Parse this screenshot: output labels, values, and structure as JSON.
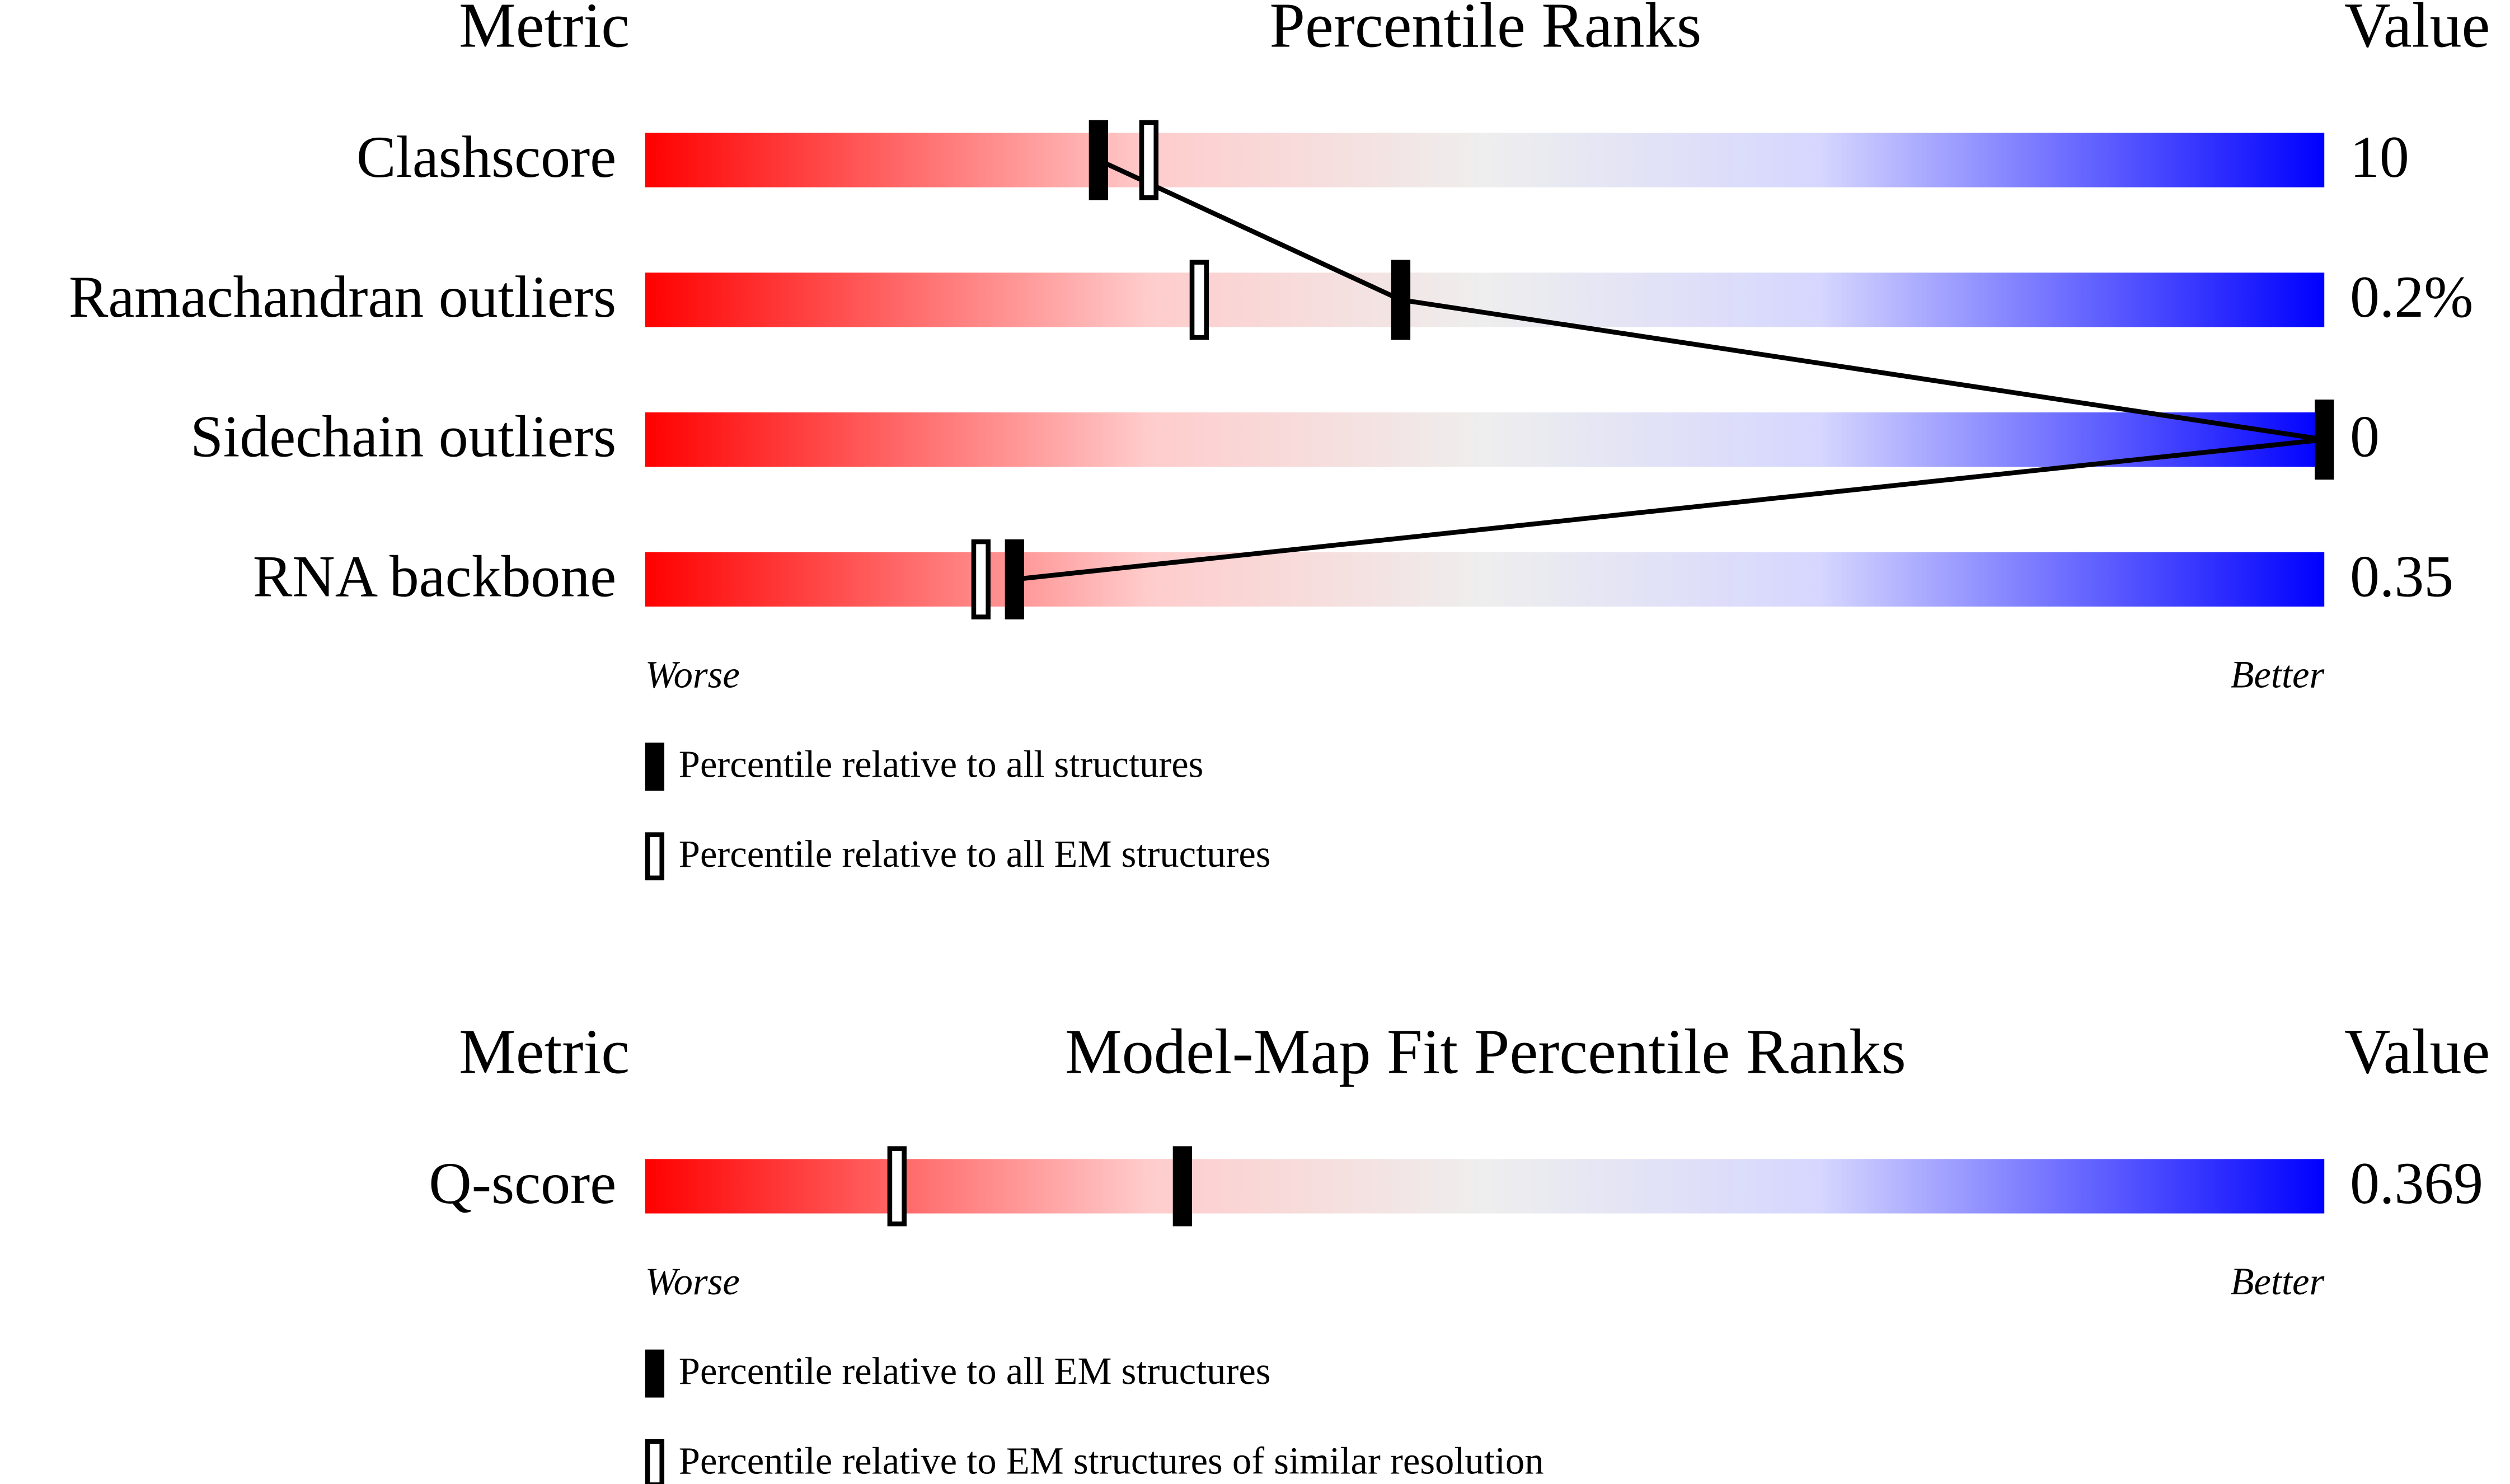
{
  "chart_data": [
    {
      "type": "percentile",
      "metric_header": "Metric",
      "title": "Percentile Ranks",
      "value_header": "Value",
      "categories": [
        "Clashscore",
        "Ramachandran outliers",
        "Sidechain outliers",
        "RNA backbone"
      ],
      "value_texts": [
        "10",
        "0.2%",
        "0",
        "0.35"
      ],
      "series": [
        {
          "name": "Percentile relative to all structures",
          "style": "filled",
          "color": "#000000",
          "values": [
            27,
            45,
            100,
            22
          ]
        },
        {
          "name": "Percentile relative to all EM structures",
          "style": "hollow",
          "color": "#000000",
          "values": [
            30,
            33,
            null,
            20
          ]
        }
      ],
      "xlim": [
        0,
        100
      ],
      "low_label": "Worse",
      "high_label": "Better",
      "connect_series": 0
    },
    {
      "type": "percentile",
      "metric_header": "Metric",
      "title": "Model-Map Fit Percentile Ranks",
      "value_header": "Value",
      "categories": [
        "Q-score"
      ],
      "value_texts": [
        "0.369"
      ],
      "series": [
        {
          "name": "Percentile relative to all EM structures",
          "style": "filled",
          "color": "#000000",
          "values": [
            32
          ]
        },
        {
          "name": "Percentile relative to EM structures of similar resolution",
          "style": "hollow",
          "color": "#000000",
          "values": [
            15
          ]
        }
      ],
      "xlim": [
        0,
        100
      ],
      "low_label": "Worse",
      "high_label": "Better"
    }
  ]
}
